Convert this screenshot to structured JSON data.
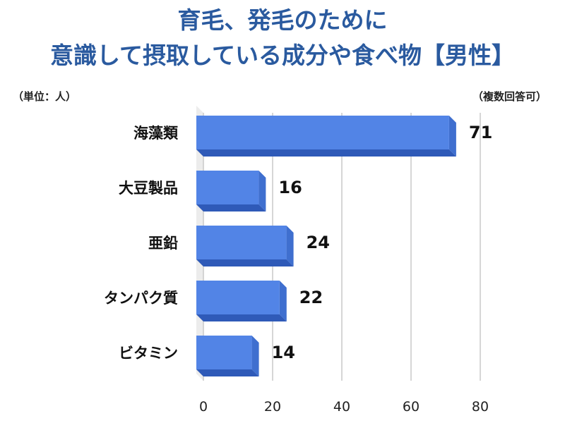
{
  "header": {
    "title_line1": "育毛、発毛のために",
    "title_line2": "意識して摂取している成分や食べ物【男性】",
    "unit_note": "（単位：人）",
    "multi_note": "（複数回答可）"
  },
  "chart_data": {
    "type": "bar",
    "orientation": "horizontal",
    "categories": [
      "海藻類",
      "大豆製品",
      "亜鉛",
      "タンパク質",
      "ビタミン"
    ],
    "values": [
      71,
      16,
      24,
      22,
      14
    ],
    "xlim": [
      0,
      80
    ],
    "xticks": [
      0,
      20,
      40,
      60,
      80
    ],
    "grid": true,
    "style": "3d",
    "colors": {
      "bar_front": "#5284e6",
      "bar_side": "#3f6fcf",
      "bar_bottom": "#2f5ab8",
      "wall": "#ececec",
      "grid": "#c9c9c9",
      "title": "#2a5a9f"
    }
  }
}
